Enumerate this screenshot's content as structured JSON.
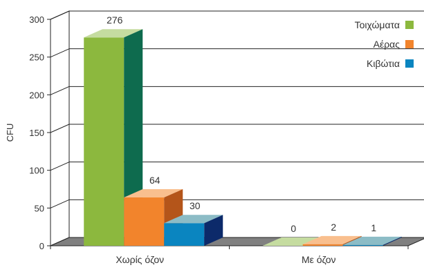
{
  "chart_data": {
    "type": "bar",
    "title": "",
    "xlabel": "",
    "ylabel": "CFU",
    "ylim": [
      0,
      300
    ],
    "yticks": [
      "0",
      "50",
      "100",
      "150",
      "200",
      "250",
      "300"
    ],
    "categories": [
      "Χωρίς όζον",
      "Με όζον"
    ],
    "series": [
      {
        "name": "Τοιχώματα",
        "values": [
          276,
          0
        ],
        "labels": [
          "276",
          "0"
        ],
        "color": "#8cb83e",
        "top_color": "#c5dca0",
        "side_color": "#0e6b4e"
      },
      {
        "name": "Αέρας",
        "values": [
          64,
          2
        ],
        "labels": [
          "64",
          "2"
        ],
        "color": "#f2842c",
        "top_color": "#f9bf8e",
        "side_color": "#b4551a"
      },
      {
        "name": "Κιβώτια",
        "values": [
          30,
          1
        ],
        "labels": [
          "30",
          "1"
        ],
        "color": "#0a85c0",
        "top_color": "#8cbcc6",
        "side_color": "#0c2a6a"
      }
    ],
    "grid": true,
    "legend_position": "top-right",
    "style": "3d-bar"
  }
}
